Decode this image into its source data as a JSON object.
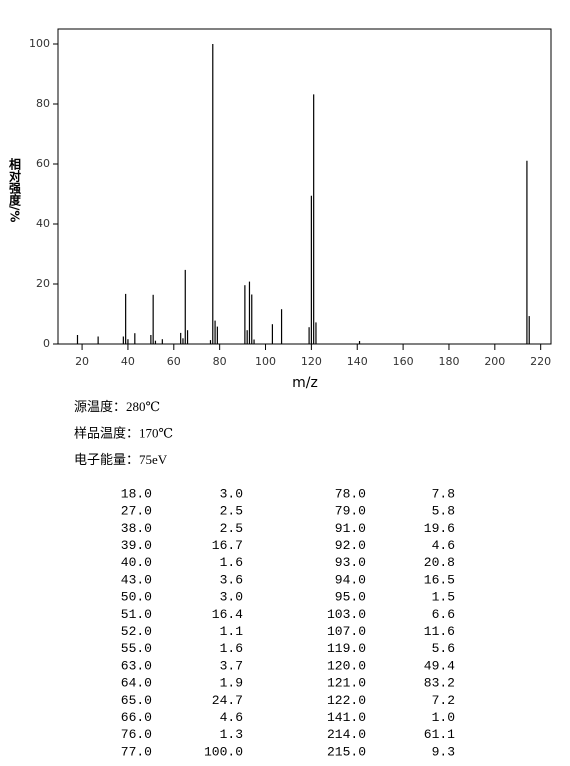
{
  "chart_data": {
    "type": "bar",
    "y_label": "相对强度/%",
    "x_label": "m/z",
    "color": "#000000",
    "x": [
      18,
      27,
      38,
      39,
      40,
      43,
      50,
      51,
      52,
      55,
      63,
      64,
      65,
      66,
      76,
      77,
      78,
      79,
      91,
      92,
      93,
      94,
      95,
      103,
      107,
      119,
      120,
      121,
      122,
      141,
      214,
      215
    ],
    "values": [
      3.0,
      2.5,
      2.5,
      16.7,
      1.6,
      3.6,
      3.0,
      16.4,
      1.1,
      1.6,
      3.7,
      1.9,
      24.7,
      4.6,
      1.3,
      100.0,
      7.8,
      5.8,
      19.6,
      4.6,
      20.8,
      16.5,
      1.5,
      6.6,
      11.6,
      5.6,
      49.4,
      83.2,
      7.2,
      1.0,
      61.1,
      9.3
    ],
    "xlim": [
      9.5,
      224.5
    ],
    "ylim": [
      0,
      105
    ],
    "xticks": [
      20,
      40,
      60,
      80,
      100,
      120,
      140,
      160,
      180,
      200,
      220
    ],
    "yticks": [
      0,
      20,
      40,
      60,
      80,
      100
    ]
  },
  "conditions": [
    "源温度：280℃",
    "样品温度：170℃",
    "电子能量：75eV"
  ],
  "table": {
    "rows": [
      [
        "18.0",
        "3.0",
        "78.0",
        "7.8"
      ],
      [
        "27.0",
        "2.5",
        "79.0",
        "5.8"
      ],
      [
        "38.0",
        "2.5",
        "91.0",
        "19.6"
      ],
      [
        "39.0",
        "16.7",
        "92.0",
        "4.6"
      ],
      [
        "40.0",
        "1.6",
        "93.0",
        "20.8"
      ],
      [
        "43.0",
        "3.6",
        "94.0",
        "16.5"
      ],
      [
        "50.0",
        "3.0",
        "95.0",
        "1.5"
      ],
      [
        "51.0",
        "16.4",
        "103.0",
        "6.6"
      ],
      [
        "52.0",
        "1.1",
        "107.0",
        "11.6"
      ],
      [
        "55.0",
        "1.6",
        "119.0",
        "5.6"
      ],
      [
        "63.0",
        "3.7",
        "120.0",
        "49.4"
      ],
      [
        "64.0",
        "1.9",
        "121.0",
        "83.2"
      ],
      [
        "65.0",
        "24.7",
        "122.0",
        "7.2"
      ],
      [
        "66.0",
        "4.6",
        "141.0",
        "1.0"
      ],
      [
        "76.0",
        "1.3",
        "214.0",
        "61.1"
      ],
      [
        "77.0",
        "100.0",
        "215.0",
        "9.3"
      ]
    ]
  }
}
